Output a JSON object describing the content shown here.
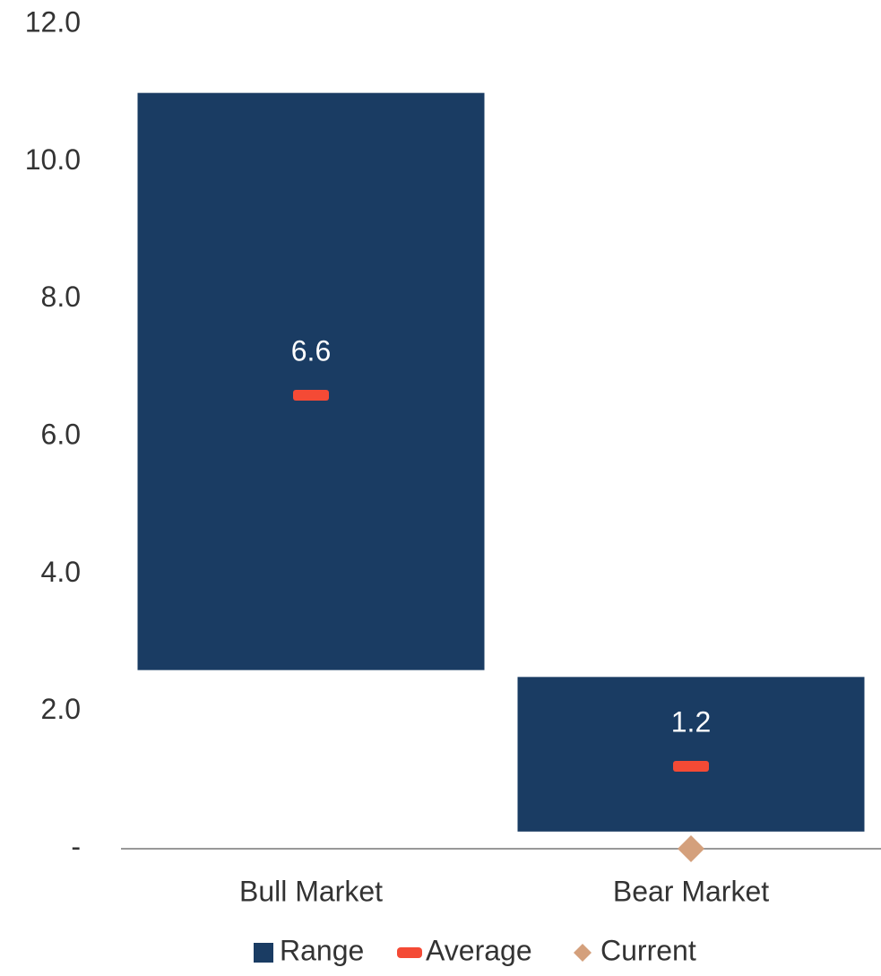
{
  "chart_data": {
    "type": "range",
    "categories": [
      "Bull Market",
      "Bear Market"
    ],
    "series": [
      {
        "name": "Range",
        "color": "#1a3c63",
        "low": [
          2.6,
          0.25
        ],
        "high": [
          11.0,
          2.5
        ]
      },
      {
        "name": "Average",
        "color": "#f44a35",
        "values": [
          6.6,
          1.2
        ]
      },
      {
        "name": "Current",
        "color": "#d4a07c",
        "values": [
          null,
          0
        ]
      }
    ],
    "ylim": [
      0,
      12
    ],
    "yticks": [
      {
        "value": 0,
        "label": "-"
      },
      {
        "value": 2,
        "label": "2.0"
      },
      {
        "value": 4,
        "label": "4.0"
      },
      {
        "value": 6,
        "label": "6.0"
      },
      {
        "value": 8,
        "label": "8.0"
      },
      {
        "value": 10,
        "label": "10.0"
      },
      {
        "value": 12,
        "label": "12.0"
      }
    ],
    "grid": false,
    "legend": "bottom"
  }
}
